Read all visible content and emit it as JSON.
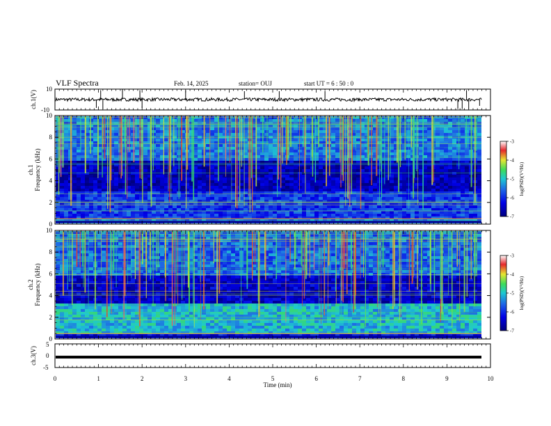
{
  "header": {
    "title": "VLF Spectra",
    "date": "Feb. 14, 2025",
    "station": "station= OUJ",
    "start": "start  UT =   6  : 50 : 0"
  },
  "colors": {
    "spec_low": "#00007f",
    "spec_mid": "#1e64e6",
    "spec_cyan": "#1ec8d2",
    "spec_green": "#3cdc5a",
    "spec_yellow": "#e6e632",
    "spec_red": "#e6282d",
    "trace": "#000000"
  },
  "chart_data": [
    {
      "type": "line",
      "panel": "ch1-waveform",
      "ylabel": "ch.1(V)",
      "ylim": [
        -10,
        10
      ],
      "yticks": [
        "10",
        "-10"
      ],
      "xlim": [
        0,
        10
      ],
      "baseline": 0,
      "spikes": [
        {
          "x": 0.95,
          "y": -8
        },
        {
          "x": 1.05,
          "y": 9
        },
        {
          "x": 1.1,
          "y": -9
        },
        {
          "x": 1.55,
          "y": 10
        },
        {
          "x": 1.95,
          "y": 9
        },
        {
          "x": 2.0,
          "y": -8
        },
        {
          "x": 3.0,
          "y": 9
        },
        {
          "x": 4.35,
          "y": 8
        },
        {
          "x": 5.15,
          "y": 8
        },
        {
          "x": 6.2,
          "y": 8
        },
        {
          "x": 9.25,
          "y": -9
        },
        {
          "x": 9.35,
          "y": -9
        },
        {
          "x": 9.45,
          "y": 9
        },
        {
          "x": 9.5,
          "y": -9
        },
        {
          "x": 9.75,
          "y": -6
        }
      ]
    },
    {
      "type": "heatmap",
      "panel": "ch1-spectrogram",
      "ylabel_top": "ch.1",
      "ylabel": "Frequency  (kHz)",
      "xlim": [
        0,
        10
      ],
      "ylim": [
        0,
        10
      ],
      "yticks": [
        "0",
        "2",
        "4",
        "6",
        "8",
        "10"
      ],
      "colorbar": {
        "label": "log(PSD)(V²/Hz)",
        "ticks": [
          "-3",
          "-4",
          "-5",
          "-6",
          "-7"
        ],
        "range": [
          -7,
          -3
        ]
      },
      "bands": [
        {
          "f0": 0,
          "f1": 0.5,
          "level": -5.4
        },
        {
          "f0": 0.5,
          "f1": 3.2,
          "level": -5.9
        },
        {
          "f0": 3.2,
          "f1": 6.0,
          "level": -6.6
        },
        {
          "f0": 6.0,
          "f1": 10,
          "level": -5.5
        }
      ]
    },
    {
      "type": "heatmap",
      "panel": "ch2-spectrogram",
      "ylabel_top": "ch.2",
      "ylabel": "Frequency  (kHz)",
      "xlim": [
        0,
        10
      ],
      "ylim": [
        0,
        10
      ],
      "yticks": [
        "0",
        "2",
        "4",
        "6",
        "8",
        "10"
      ],
      "colorbar": {
        "label": "log(PSD)(V²/Hz)",
        "ticks": [
          "-3",
          "-4",
          "-5",
          "-6",
          "-7"
        ],
        "range": [
          -7,
          -3
        ]
      },
      "bands": [
        {
          "f0": 0,
          "f1": 0.5,
          "level": -6.2
        },
        {
          "f0": 0.5,
          "f1": 3.3,
          "level": -5.1
        },
        {
          "f0": 3.3,
          "f1": 6.0,
          "level": -6.5
        },
        {
          "f0": 6.0,
          "f1": 10,
          "level": -5.6
        }
      ]
    },
    {
      "type": "line",
      "panel": "ch3-waveform",
      "ylabel": "ch.3(V)",
      "ylim": [
        -5,
        5
      ],
      "yticks": [
        "5",
        "0",
        "-5"
      ],
      "xlim": [
        0,
        10
      ],
      "baseline": -0.6,
      "xlabel": "Time  (min)",
      "xticks": [
        "0",
        "1",
        "2",
        "3",
        "4",
        "5",
        "6",
        "7",
        "8",
        "9",
        "10"
      ]
    }
  ]
}
